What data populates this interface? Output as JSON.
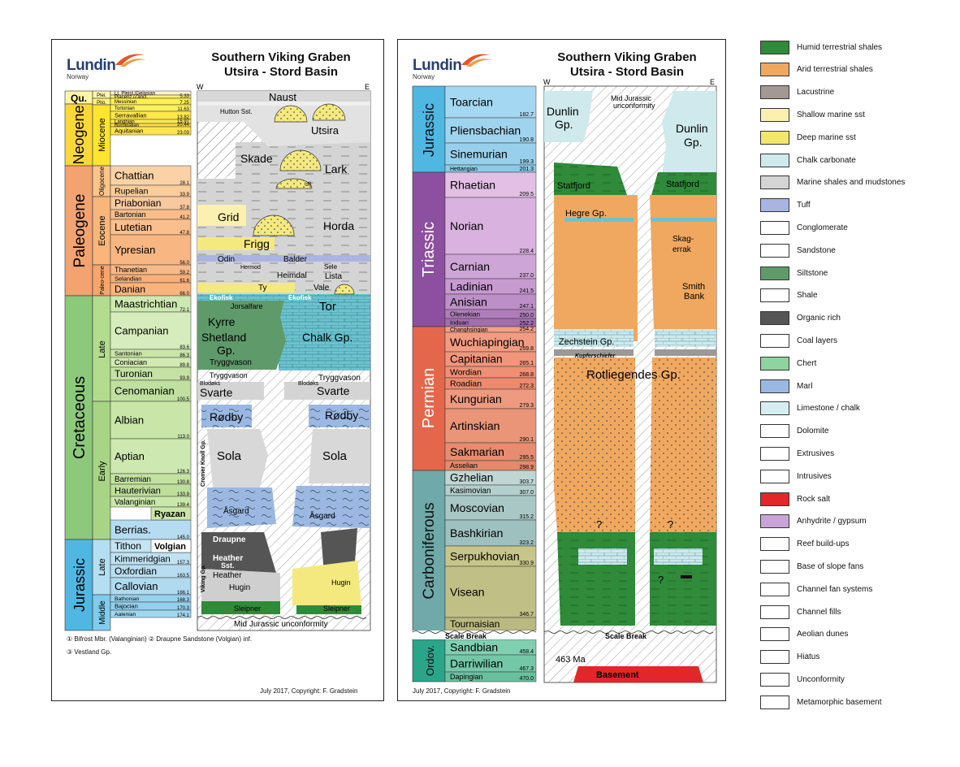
{
  "left_panel": {
    "logo": "Lundin",
    "logo_sub": "Norway",
    "title_line1": "Southern Viking Graben",
    "title_line2": "Utsira - Stord Basin",
    "west": "W",
    "east": "E",
    "footnote1": "① Bifrost Mbr. (Valanginian)  ② Draupne Sandstone (Volgian) inf.",
    "footnote2": "③ Vestland Gp.",
    "copyright": "July 2017, Copyright: F. Gradstein",
    "periods": [
      "Qu.",
      "Neogene",
      "Paleogene",
      "Cretaceous",
      "Jurassic"
    ],
    "epochs": [
      "Plei.",
      "Plio.",
      "Miocene",
      "Oligocene",
      "Eocene",
      "Paleo-cene",
      "Late",
      "Early",
      "Late",
      "Middle"
    ],
    "stages": [
      {
        "name": "Lt. Pleist./Gelasian",
        "age": ""
      },
      {
        "name": "Piacenz./Zancl.",
        "age": "5.33"
      },
      {
        "name": "Messinian",
        "age": "7.25"
      },
      {
        "name": "Tortonian",
        "age": "11.63"
      },
      {
        "name": "Serravallian",
        "age": "13.82"
      },
      {
        "name": "Langhian",
        "age": "15.97"
      },
      {
        "name": "Burdigalian",
        "age": "20.44"
      },
      {
        "name": "Aquitanian",
        "age": "23.03"
      },
      {
        "name": "Chattian",
        "age": "28.1"
      },
      {
        "name": "Rupelian",
        "age": "33.9"
      },
      {
        "name": "Priabonian",
        "age": "37.8"
      },
      {
        "name": "Bartonian",
        "age": "41.2"
      },
      {
        "name": "Lutetian",
        "age": "47.8"
      },
      {
        "name": "Ypresian",
        "age": "56.0"
      },
      {
        "name": "Thanetian",
        "age": "59.2"
      },
      {
        "name": "Selandian",
        "age": "61.6"
      },
      {
        "name": "Danian",
        "age": "66.0"
      },
      {
        "name": "Maastrichtian",
        "age": "72.1"
      },
      {
        "name": "Campanian",
        "age": "83.6"
      },
      {
        "name": "Santonian",
        "age": "86.3"
      },
      {
        "name": "Coniacian",
        "age": "89.8"
      },
      {
        "name": "Turonian",
        "age": "93.9"
      },
      {
        "name": "Cenomanian",
        "age": "100.5"
      },
      {
        "name": "Albian",
        "age": "113.0"
      },
      {
        "name": "Aptian",
        "age": "126.3"
      },
      {
        "name": "Barremian",
        "age": "130.8"
      },
      {
        "name": "Hauterivian",
        "age": "133.9"
      },
      {
        "name": "Valanginian",
        "age": "139.4"
      },
      {
        "name": "Berrias.",
        "age": "145.0"
      },
      {
        "name": "Ryazan",
        "age": ""
      },
      {
        "name": "Tithon",
        "age": ""
      },
      {
        "name": "Volgian",
        "age": "152.1"
      },
      {
        "name": "Kimmeridgian",
        "age": "157.3"
      },
      {
        "name": "Oxfordian",
        "age": "163.5"
      },
      {
        "name": "Callovian",
        "age": "166.1"
      },
      {
        "name": "Bathonian",
        "age": "168.3"
      },
      {
        "name": "Bajocian",
        "age": "170.3"
      },
      {
        "name": "Aalenian",
        "age": "174.1"
      }
    ],
    "units": {
      "naust": "Naust",
      "hutton": "Hutton Sst.",
      "utsira": "Utsira",
      "skade": "Skade",
      "lark": "Lark",
      "ull": "Ull",
      "grid": "Grid",
      "horda": "Horda",
      "frigg": "Frigg",
      "odin": "Odin",
      "balder": "Balder",
      "hermod": "Hermod",
      "sele": "Sele",
      "heimdal": "Heimdal",
      "lista": "Lista",
      "ty": "Ty",
      "vale": "Vale",
      "ekofisk1": "Ekofisk",
      "ekofisk2": "Ekofisk",
      "jorsalfare": "Jorsalfare",
      "tor": "Tor",
      "kyrre": "Kyrre",
      "shetland": "Shetland",
      "gp": "Gp.",
      "chalk": "Chalk Gp.",
      "tryggvason1": "Tryggvason",
      "tryggvason2": "Tryggvason",
      "tryggvason3": "Tryggvason",
      "blodoks1": "Blodøks",
      "blodoks2": "Blodøks",
      "svarte1": "Svarte",
      "svarte2": "Svarte",
      "rodby1": "Rødby",
      "rodby2": "Rødby",
      "sola1": "Sola",
      "sola2": "Sola",
      "cromer": "Cromer Knoll Gp.",
      "asgard1": "Åsgard",
      "asgard2": "Åsgard",
      "draupne": "Draupne",
      "heather_sst": "Heather",
      "heather_sst2": "Sst.",
      "heather": "Heather",
      "hugin1": "Hugin",
      "hugin2": "Hugin",
      "sleipner1": "Sleipner",
      "sleipner2": "Sleipner",
      "viking": "Viking Gp.",
      "mju": "Mid Jurassic unconformity"
    }
  },
  "right_panel": {
    "logo": "Lundin",
    "logo_sub": "Norway",
    "title_line1": "Southern Viking Graben",
    "title_line2": "Utsira - Stord Basin",
    "west": "W",
    "east": "E",
    "copyright": "July 2017, Copyright: F. Gradstein",
    "periods": [
      "Jurassic",
      "Triassic",
      "Permian",
      "Carboniferous",
      "Ordov."
    ],
    "scale_break": "Scale Break",
    "stages": [
      {
        "name": "Toarcian",
        "age": "182.7"
      },
      {
        "name": "Pliensbachian",
        "age": "190.8"
      },
      {
        "name": "Sinemurian",
        "age": "199.3"
      },
      {
        "name": "Hettangian",
        "age": "201.3"
      },
      {
        "name": "Rhaetian",
        "age": "209.5"
      },
      {
        "name": "Norian",
        "age": "228.4"
      },
      {
        "name": "Carnian",
        "age": "237.0"
      },
      {
        "name": "Ladinian",
        "age": "241.5"
      },
      {
        "name": "Anisian",
        "age": "247.1"
      },
      {
        "name": "Olenekian",
        "age": "250.0"
      },
      {
        "name": "Induan",
        "age": "252.2"
      },
      {
        "name": "Changhsingian",
        "age": "254.2"
      },
      {
        "name": "Wuchiapingian",
        "age": "259.8"
      },
      {
        "name": "Capitanian",
        "age": "265.1"
      },
      {
        "name": "Wordian",
        "age": "268.8"
      },
      {
        "name": "Roadian",
        "age": "272.3"
      },
      {
        "name": "Kungurian",
        "age": "279.3"
      },
      {
        "name": "Artinskian",
        "age": "290.1"
      },
      {
        "name": "Sakmarian",
        "age": "295.5"
      },
      {
        "name": "Asselian",
        "age": "298.9"
      },
      {
        "name": "Gzhelian",
        "age": "303.7"
      },
      {
        "name": "Kasimovian",
        "age": "307.0"
      },
      {
        "name": "Moscovian",
        "age": "315.2"
      },
      {
        "name": "Bashkirian",
        "age": "323.2"
      },
      {
        "name": "Serpukhovian",
        "age": "330.9"
      },
      {
        "name": "Visean",
        "age": "346.7"
      },
      {
        "name": "Tournaisian",
        "age": ""
      },
      {
        "name": "Sandbian",
        "age": "458.4"
      },
      {
        "name": "Darriwilian",
        "age": "467.3"
      },
      {
        "name": "Dapingian",
        "age": "470.0"
      }
    ],
    "units": {
      "dunlin1": "Dunlin",
      "dunlin1b": "Gp.",
      "dunlin2": "Dunlin",
      "dunlin2b": "Gp.",
      "mju1": "Mid Jurassic",
      "mju2": "unconformity",
      "statfjord1": "Statfjord",
      "statfjord2": "Statfjord",
      "hegre": "Hegre Gp.",
      "skagerrak1": "Skag-",
      "skagerrak2": "errak",
      "smith1": "Smith",
      "smith2": "Bank",
      "zechstein": "Zechstein Gp.",
      "kupfer": "Kupferschiefer",
      "rotliegendes": "Rotliegendes Gp.",
      "q": "?",
      "ma": "463 Ma",
      "basement": "Basement"
    }
  },
  "legend": [
    {
      "label": "Humid terrestrial shales",
      "color": "#2f8a3a"
    },
    {
      "label": "Arid terrestrial shales",
      "color": "#f0a860"
    },
    {
      "label": "Lacustrine",
      "color": "#a39894"
    },
    {
      "label": "Shallow marine sst",
      "color": "#fbf0b0"
    },
    {
      "label": "Deep marine sst",
      "color": "#f2e76a"
    },
    {
      "label": "Chalk carbonate",
      "color": "#cfe9ec"
    },
    {
      "label": "Marine shales and mudstones",
      "color": "#d4d4d4"
    },
    {
      "label": "Tuff",
      "color": "#aab4e2"
    },
    {
      "label": "Conglomerate",
      "color": "#ffffff"
    },
    {
      "label": "Sandstone",
      "color": "#ffffff"
    },
    {
      "label": "Siltstone",
      "color": "#5f9a6a"
    },
    {
      "label": "Shale",
      "color": "#ffffff"
    },
    {
      "label": "Organic rich",
      "color": "#555555"
    },
    {
      "label": "Coal layers",
      "color": "#ffffff"
    },
    {
      "label": "Chert",
      "color": "#8fd3a0"
    },
    {
      "label": "Marl",
      "color": "#9bb8e2"
    },
    {
      "label": "Limestone / chalk",
      "color": "#d7eef0"
    },
    {
      "label": "Dolomite",
      "color": "#ffffff"
    },
    {
      "label": "Extrusives",
      "color": "#ffffff"
    },
    {
      "label": "Intrusives",
      "color": "#ffffff"
    },
    {
      "label": "Rock salt",
      "color": "#e2262a"
    },
    {
      "label": "Anhydrite / gypsum",
      "color": "#c9a4d8"
    },
    {
      "label": "Reef build-ups",
      "color": "#ffffff"
    },
    {
      "label": "Base of slope fans",
      "color": "#ffffff"
    },
    {
      "label": "Channel fan systems",
      "color": "#ffffff"
    },
    {
      "label": "Channel fills",
      "color": "#ffffff"
    },
    {
      "label": "Aeolian dunes",
      "color": "#ffffff"
    },
    {
      "label": "Hiatus",
      "color": "#ffffff"
    },
    {
      "label": "Unconformity",
      "color": "#ffffff"
    },
    {
      "label": "Metamorphic basement",
      "color": "#ffffff"
    }
  ]
}
